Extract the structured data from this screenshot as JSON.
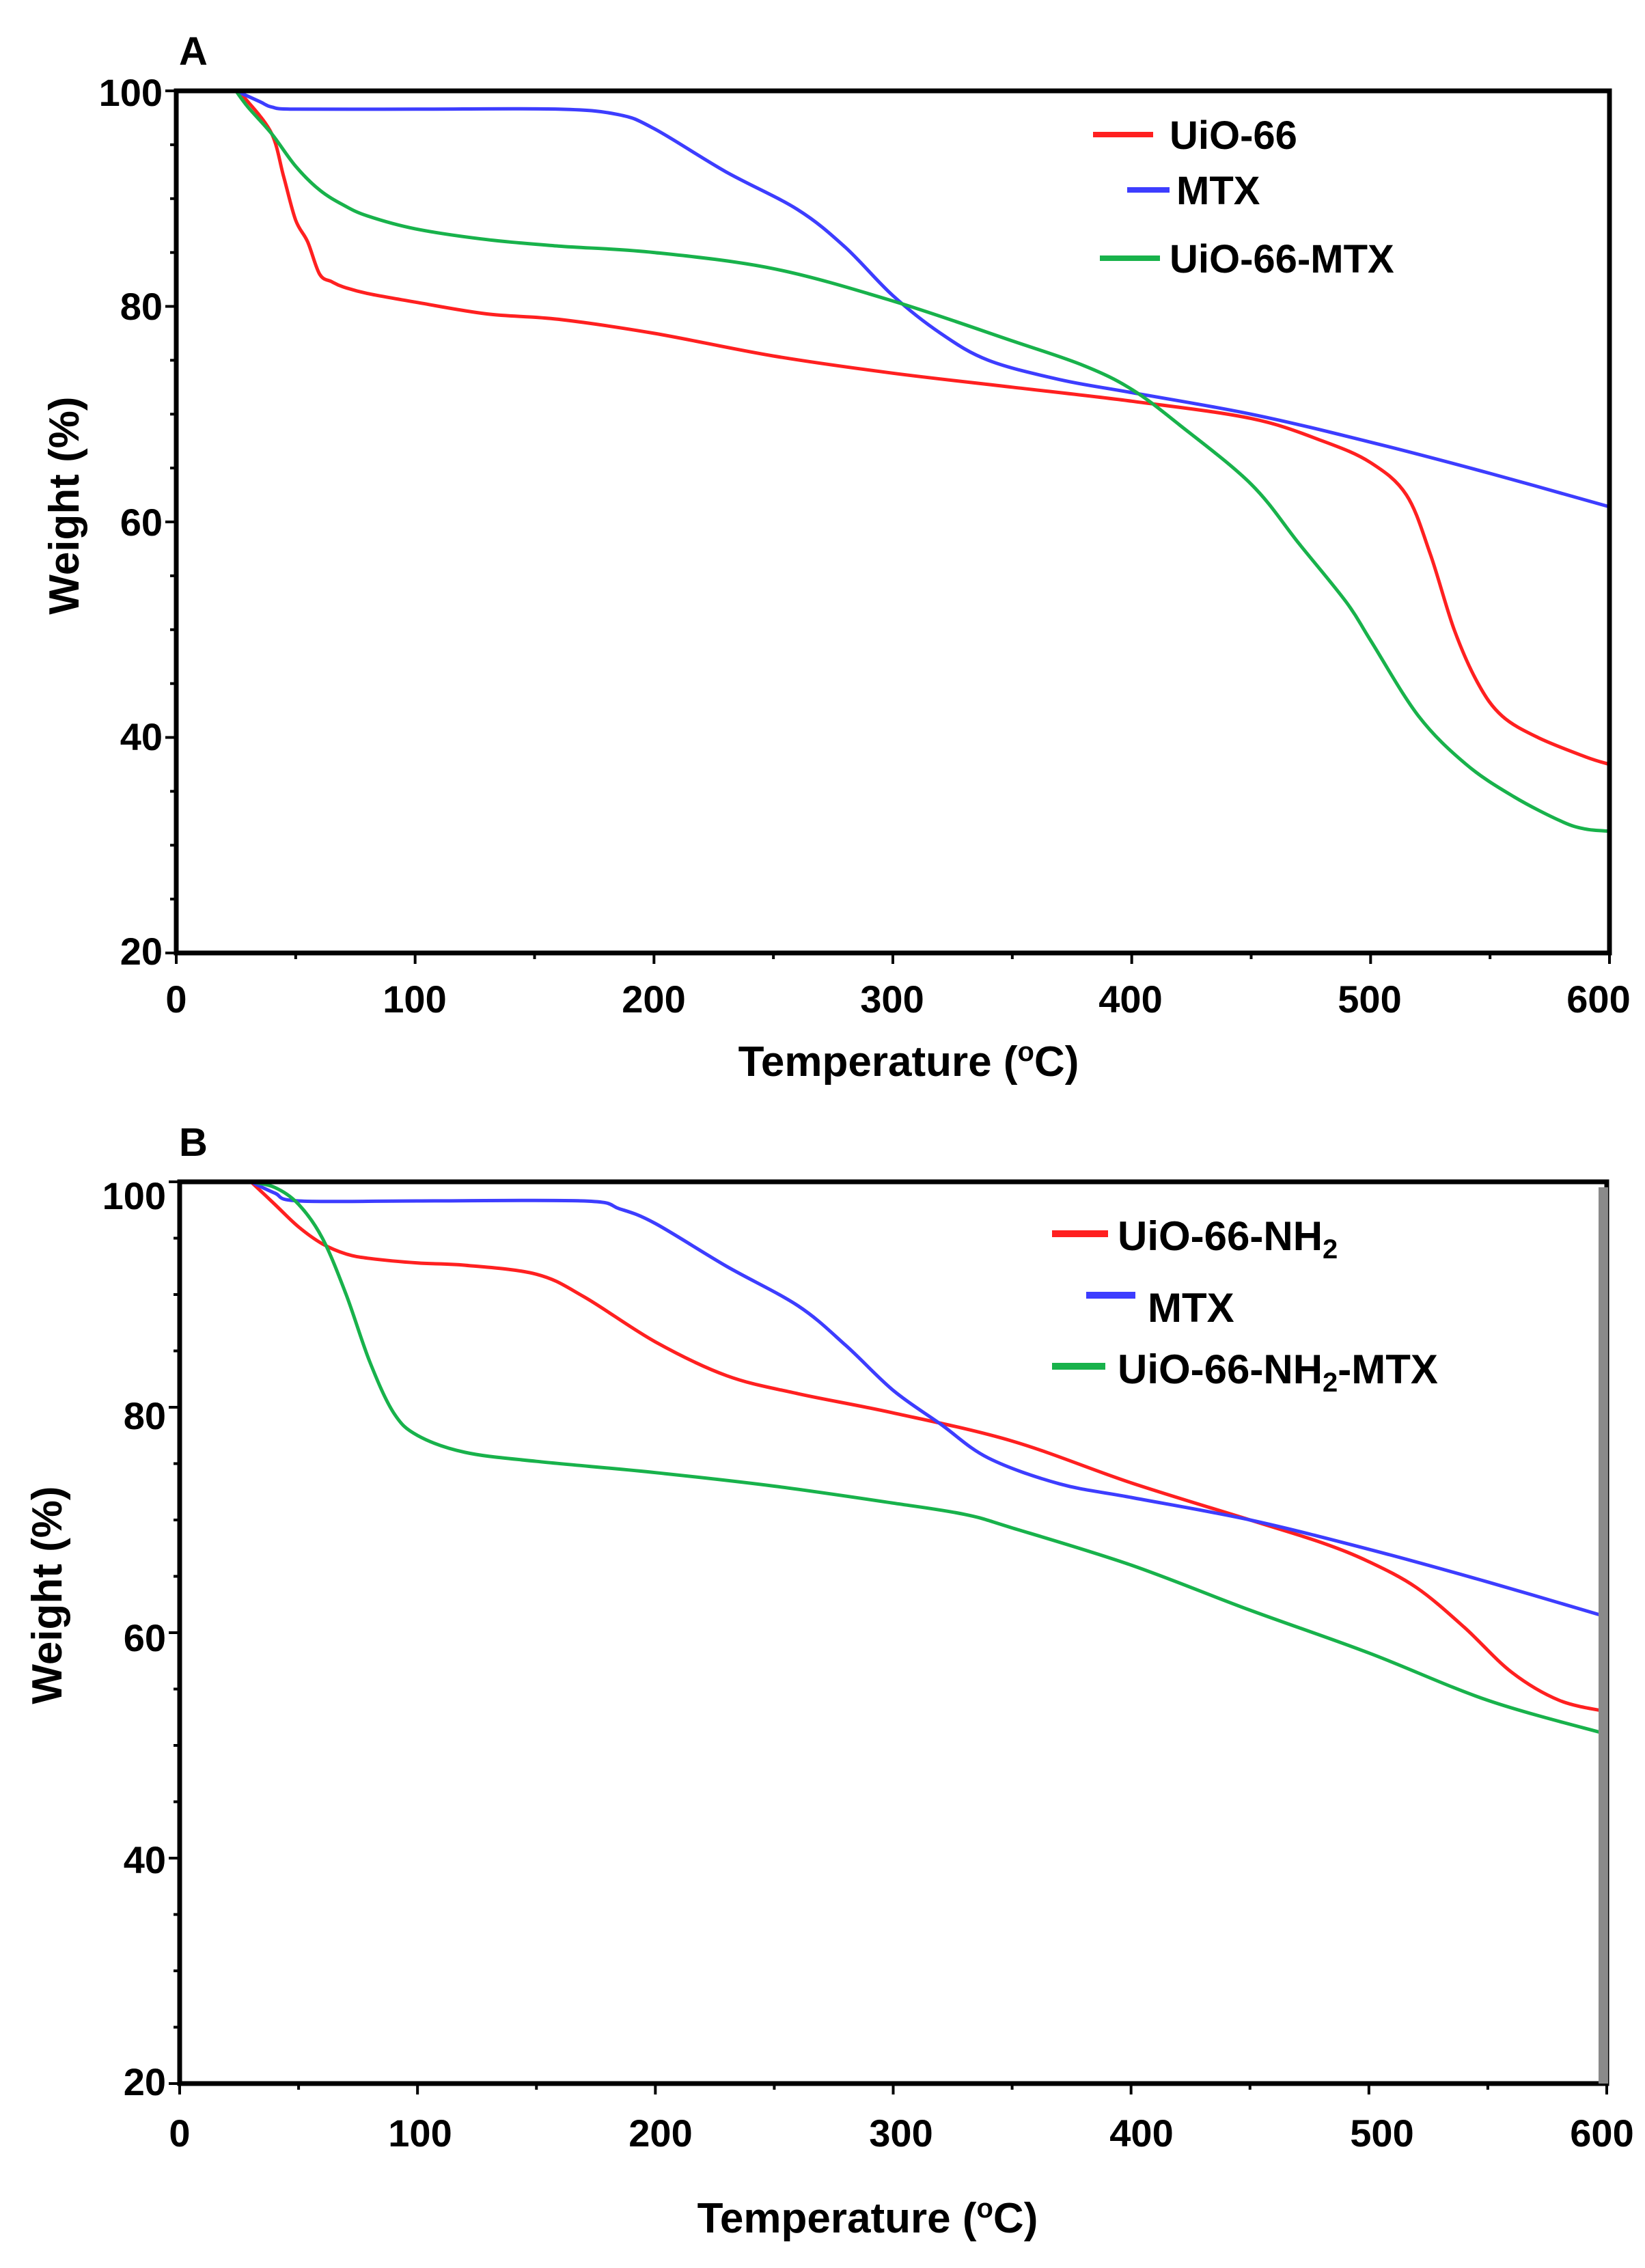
{
  "chart_data": [
    {
      "type": "line",
      "panel_label": "A",
      "xlabel": "Temperature (",
      "xlabel_unit_degree": "o",
      "xlabel_unit": "C)",
      "ylabel": "Weight (%)",
      "xlim": [
        0,
        600
      ],
      "ylim": [
        20,
        100
      ],
      "xticks": [
        "0",
        "100",
        "200",
        "300",
        "400",
        "500",
        "600"
      ],
      "yticks": [
        "20",
        "40",
        "60",
        "80",
        "100"
      ],
      "legend_position": "top-right",
      "series": [
        {
          "name": "UiO-66",
          "color": "#ff2020",
          "x": [
            25,
            30,
            40,
            45,
            50,
            55,
            60,
            65,
            70,
            80,
            100,
            130,
            160,
            200,
            250,
            300,
            350,
            400,
            450,
            480,
            500,
            515,
            525,
            535,
            545,
            555,
            570,
            590,
            600
          ],
          "y": [
            100,
            99,
            96,
            92,
            88,
            86,
            83,
            82.3,
            81.8,
            81.2,
            80.4,
            79.3,
            78.8,
            77.5,
            75.4,
            73.8,
            72.5,
            71.2,
            69.6,
            67.5,
            65.5,
            62.5,
            57,
            50,
            45,
            42,
            40,
            38.2,
            37.5
          ]
        },
        {
          "name": "MTX",
          "color": "#3d3dff",
          "x": [
            25,
            35,
            40,
            50,
            100,
            160,
            185,
            200,
            230,
            260,
            280,
            300,
            320,
            340,
            370,
            400,
            450,
            500,
            550,
            600
          ],
          "y": [
            100,
            99,
            98.5,
            98.3,
            98.3,
            98.3,
            97.8,
            96.5,
            92.5,
            89,
            85.5,
            81,
            77.5,
            75,
            73.2,
            72,
            70,
            67.4,
            64.5,
            61.4
          ]
        },
        {
          "name": "UiO-66-MTX",
          "color": "#18b24b",
          "x": [
            25,
            30,
            40,
            50,
            60,
            70,
            80,
            100,
            130,
            160,
            200,
            250,
            300,
            350,
            380,
            400,
            420,
            450,
            470,
            490,
            500,
            520,
            540,
            560,
            580,
            590,
            600
          ],
          "y": [
            100,
            98.5,
            96,
            93,
            90.8,
            89.4,
            88.4,
            87.2,
            86.2,
            85.6,
            85,
            83.5,
            80.5,
            76.8,
            74.5,
            72.3,
            69,
            63.5,
            58,
            52.5,
            49,
            42,
            37.5,
            34.5,
            32.2,
            31.5,
            31.3
          ]
        }
      ]
    },
    {
      "type": "line",
      "panel_label": "B",
      "xlabel": "Temperature (",
      "xlabel_unit_degree": "o",
      "xlabel_unit": "C)",
      "ylabel": "Weight (%)",
      "xlim": [
        0,
        600
      ],
      "ylim": [
        20,
        100
      ],
      "xticks": [
        "0",
        "100",
        "200",
        "300",
        "400",
        "500",
        "600"
      ],
      "yticks": [
        "20",
        "40",
        "60",
        "80",
        "100"
      ],
      "legend_position": "top-right",
      "series": [
        {
          "name": "UiO-66-NH2",
          "label_main": "UiO-66-NH",
          "label_sub": "2",
          "label_tail": "",
          "color": "#ff2020",
          "x": [
            30,
            40,
            50,
            60,
            70,
            80,
            100,
            120,
            150,
            170,
            200,
            230,
            260,
            300,
            350,
            400,
            450,
            480,
            500,
            520,
            540,
            560,
            580,
            600
          ],
          "y": [
            100,
            98,
            96,
            94.5,
            93.6,
            93.2,
            92.8,
            92.6,
            91.8,
            89.8,
            85.8,
            82.8,
            81.2,
            79.5,
            77,
            73.3,
            70,
            68,
            66.3,
            64,
            60.5,
            56.5,
            54,
            53
          ]
        },
        {
          "name": "MTX",
          "color": "#3d3dff",
          "x": [
            30,
            40,
            50,
            100,
            170,
            185,
            200,
            230,
            260,
            280,
            300,
            320,
            340,
            370,
            400,
            450,
            500,
            550,
            600
          ],
          "y": [
            100,
            99,
            98.3,
            98.3,
            98.3,
            97.6,
            96.3,
            92.5,
            89,
            85.5,
            81.5,
            78.5,
            75.5,
            73.2,
            72,
            70,
            67.4,
            64.5,
            61.4
          ]
        },
        {
          "name": "UiO-66-NH2-MTX",
          "label_main": "UiO-66-NH",
          "label_sub": "2",
          "label_tail": "-MTX",
          "color": "#18b24b",
          "x": [
            30,
            40,
            50,
            60,
            70,
            80,
            90,
            100,
            120,
            150,
            200,
            250,
            300,
            330,
            350,
            400,
            450,
            500,
            550,
            600
          ],
          "y": [
            100,
            99.5,
            98,
            95,
            90,
            84,
            79.5,
            77.5,
            76,
            75.2,
            74.2,
            73,
            71.5,
            70.5,
            69.3,
            66,
            62,
            58.2,
            54,
            51
          ]
        }
      ]
    }
  ]
}
